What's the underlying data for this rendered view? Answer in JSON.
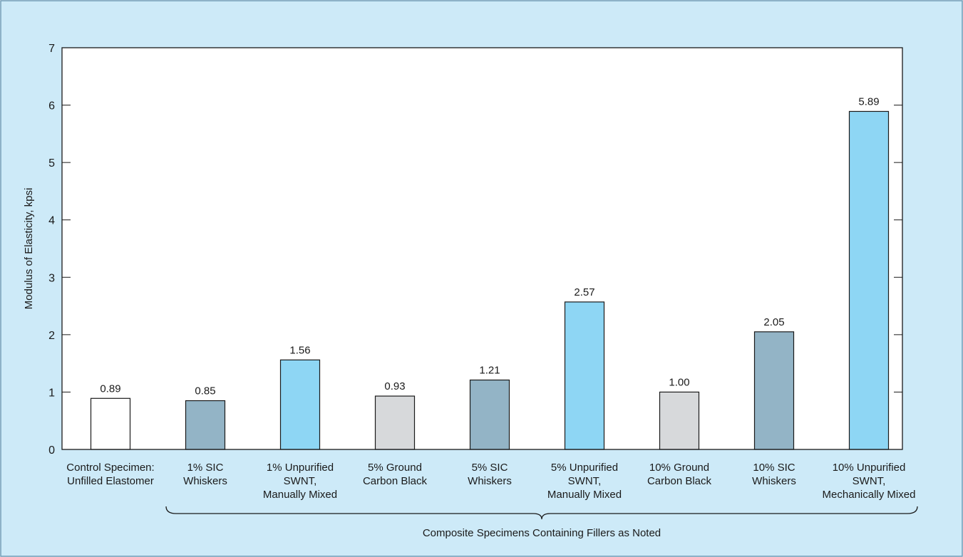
{
  "colors": {
    "panel_background": "#cdeaf8",
    "panel_border": "#6f9bb5",
    "plot_background": "#ffffff",
    "white_bar": "#ffffff",
    "sic_whiskers": "#93b4c6",
    "unpurified_swnt": "#8ed6f4",
    "carbon_black": "#d7d9db",
    "bar_stroke": "#1a1a1a",
    "axis": "#1a1a1a"
  },
  "chart_data": {
    "type": "bar",
    "title": "",
    "ylabel": "Modulus of Elasticity, kpsi",
    "xlabel": "Composite Specimens Containing Fillers as Noted",
    "ylim": [
      0,
      7
    ],
    "yticks": [
      "0",
      "1",
      "2",
      "3",
      "4",
      "5",
      "6",
      "7"
    ],
    "grid": false,
    "categories": [
      [
        "Control Specimen:",
        "Unfilled Elastomer"
      ],
      [
        "1% SIC",
        "Whiskers"
      ],
      [
        "1% Unpurified",
        "SWNT,",
        "Manually Mixed"
      ],
      [
        "5% Ground",
        "Carbon Black"
      ],
      [
        "5% SIC",
        "Whiskers"
      ],
      [
        "5% Unpurified",
        "SWNT,",
        "Manually Mixed"
      ],
      [
        "10% Ground",
        "Carbon Black"
      ],
      [
        "10% SIC",
        "Whiskers"
      ],
      [
        "10% Unpurified",
        "SWNT,",
        "Mechanically Mixed"
      ]
    ],
    "values": [
      0.89,
      0.85,
      1.56,
      0.93,
      1.21,
      2.57,
      1.0,
      2.05,
      5.89
    ],
    "value_labels": [
      "0.89",
      "0.85",
      "1.56",
      "0.93",
      "1.21",
      "2.57",
      "1.00",
      "2.05",
      "5.89"
    ],
    "bar_colors": [
      "white_bar",
      "sic_whiskers",
      "unpurified_swnt",
      "carbon_black",
      "sic_whiskers",
      "unpurified_swnt",
      "carbon_black",
      "sic_whiskers",
      "unpurified_swnt"
    ],
    "bracket_group": {
      "label": "Composite Specimens Containing Fillers as Noted",
      "from_category": 1,
      "to_category": 8
    }
  }
}
